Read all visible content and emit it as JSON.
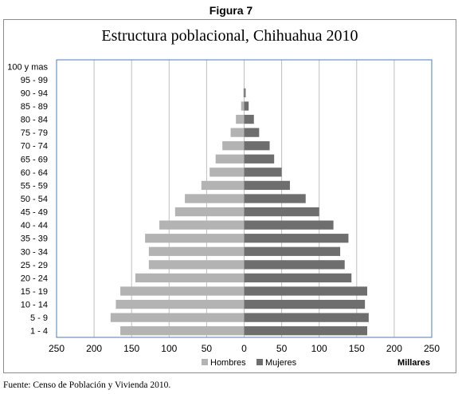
{
  "figure_label": "Figura 7",
  "source_note": "Fuente: Censo de Población y Vivienda 2010.",
  "chart_data": {
    "type": "bar",
    "orientation": "horizontal",
    "title": "Estructura poblacional, Chihuahua 2010",
    "unit_label": "Millares",
    "categories": [
      "1 - 4",
      "5 - 9",
      "10 - 14",
      "15 - 19",
      "20 - 24",
      "25 - 29",
      "30 - 34",
      "35 - 39",
      "40 - 44",
      "45 - 49",
      "50 - 54",
      "55 - 59",
      "60 - 64",
      "65 - 69",
      "70 - 74",
      "75 - 79",
      "80 - 84",
      "85 - 89",
      "90 - 94",
      "95 - 99",
      "100 y mas"
    ],
    "series": [
      {
        "name": "Hombres",
        "color": "#b3b3b3",
        "values": [
          165,
          178,
          171,
          165,
          145,
          127,
          127,
          132,
          113,
          92,
          79,
          57,
          46,
          38,
          29,
          18,
          11,
          4,
          1,
          0,
          0
        ]
      },
      {
        "name": "Mujeres",
        "color": "#6e6e6e",
        "values": [
          164,
          166,
          161,
          164,
          143,
          134,
          128,
          139,
          119,
          100,
          82,
          61,
          50,
          40,
          34,
          20,
          13,
          6,
          2,
          0,
          0
        ]
      }
    ],
    "x_axis": {
      "ticks": [
        250,
        200,
        150,
        100,
        50,
        0,
        50,
        100,
        150,
        200,
        250
      ],
      "range": [
        -250,
        250
      ]
    },
    "grid": true,
    "legend_position": "bottom"
  }
}
